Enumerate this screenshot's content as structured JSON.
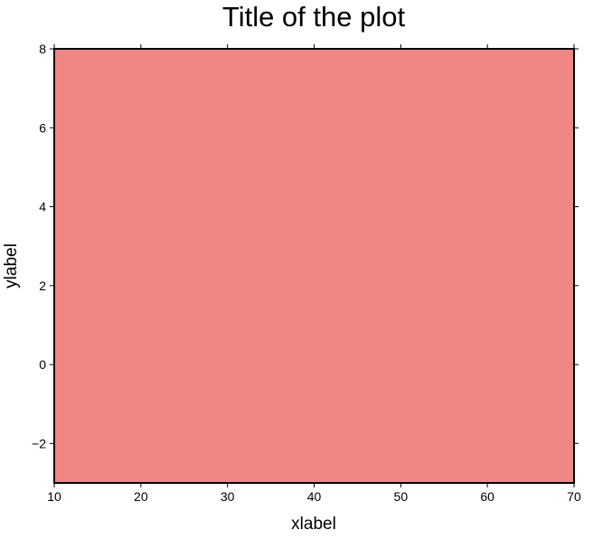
{
  "chart_data": {
    "type": "area",
    "title": "Title of the plot",
    "xlabel": "xlabel",
    "ylabel": "ylabel",
    "xlim": [
      10,
      70
    ],
    "ylim": [
      -3,
      8
    ],
    "x_ticks": [
      10,
      20,
      30,
      40,
      50,
      60,
      70
    ],
    "y_ticks": [
      -2,
      0,
      2,
      4,
      6,
      8
    ],
    "x_tick_labels": [
      "10",
      "20",
      "30",
      "40",
      "50",
      "60",
      "70"
    ],
    "y_tick_labels": [
      "−2",
      "0",
      "2",
      "4",
      "6",
      "8"
    ],
    "grid": false,
    "fill": {
      "x": [
        10,
        70
      ],
      "y_lower": [
        -3,
        -3
      ],
      "y_upper": [
        8,
        8
      ],
      "color": "#f08784"
    },
    "frame_color": "#000000"
  }
}
